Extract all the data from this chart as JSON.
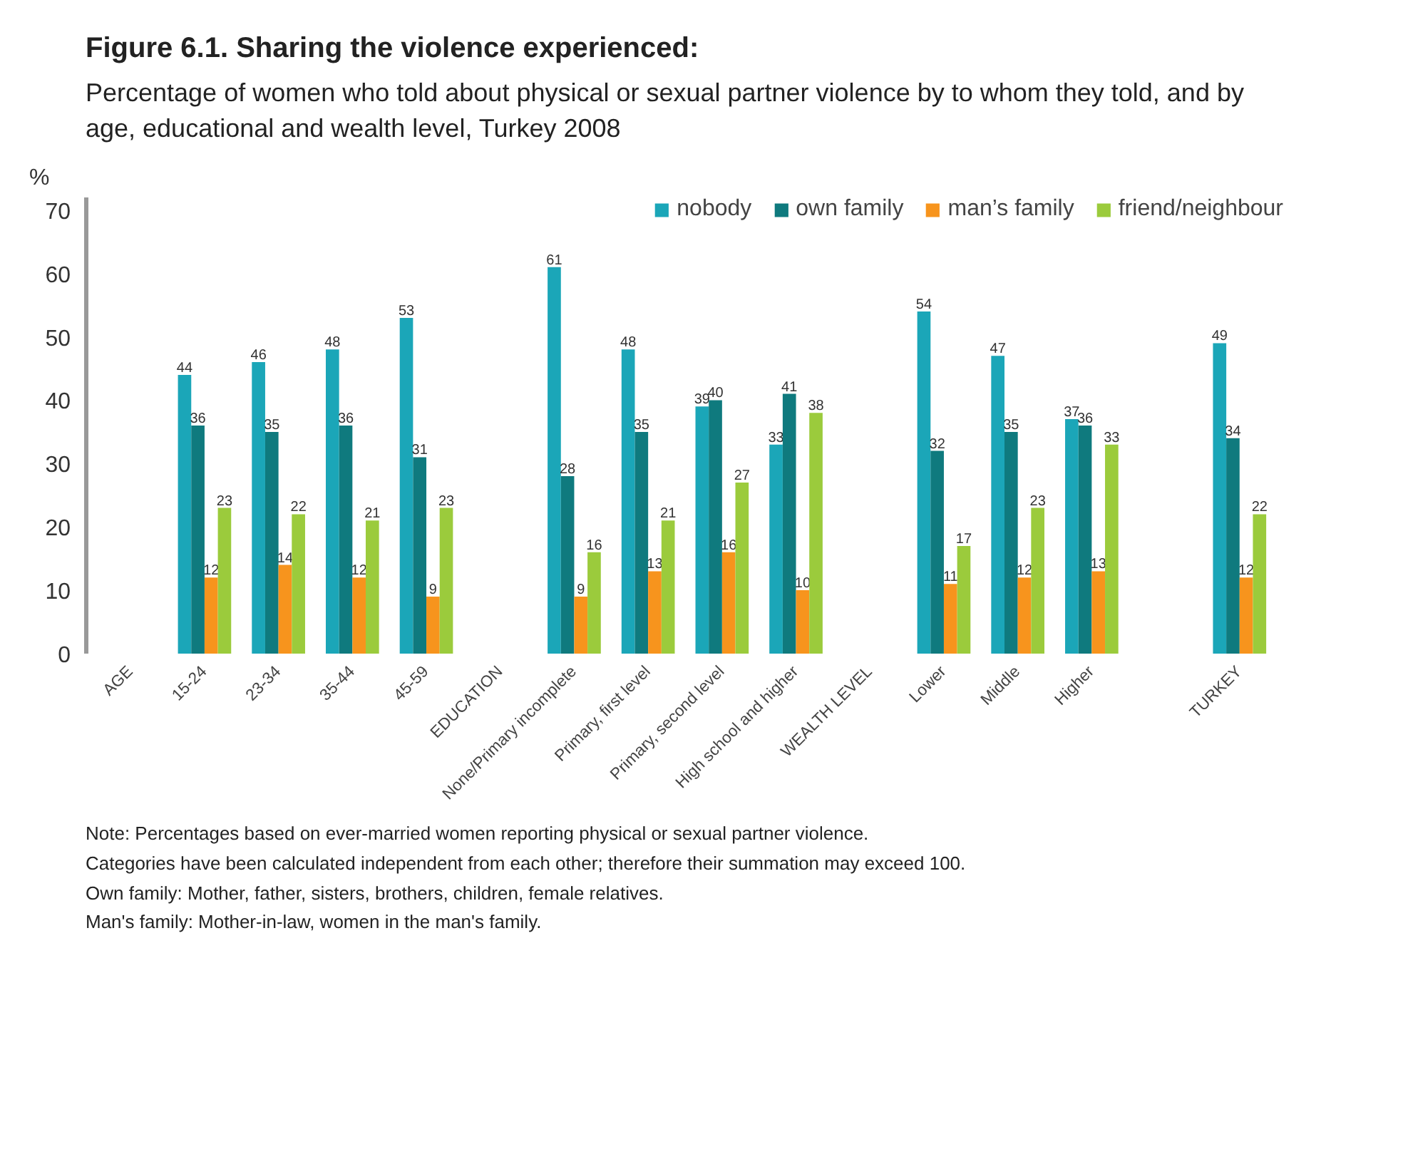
{
  "chart_data": {
    "type": "bar",
    "title": "Figure 6.1. Sharing the violence experienced:",
    "subtitle": "Percentage of women who told about physical or sexual partner violence by to whom they told, and by age, educational and wealth level, Turkey 2008",
    "ylabel": "%",
    "categories": [
      "AGE",
      "15-24",
      "23-34",
      "35-44",
      "45-59",
      "EDUCATION",
      "None/Primary incomplete",
      "Primary, first level",
      "Primary, second level",
      "High school and higher",
      "WEALTH LEVEL",
      "Lower",
      "Middle",
      "Higher",
      null,
      "TURKEY"
    ],
    "series": [
      {
        "name": "nobody",
        "color": "#1ba6b8",
        "values": [
          null,
          44,
          46,
          48,
          53,
          null,
          61,
          48,
          39,
          33,
          null,
          54,
          47,
          37,
          null,
          49
        ]
      },
      {
        "name": "own family",
        "color": "#0f7a7e",
        "values": [
          null,
          36,
          35,
          36,
          31,
          null,
          28,
          35,
          40,
          41,
          null,
          32,
          35,
          36,
          null,
          34
        ]
      },
      {
        "name": "man’s family",
        "color": "#f7941d",
        "values": [
          null,
          12,
          14,
          12,
          9,
          null,
          9,
          13,
          16,
          10,
          null,
          11,
          12,
          13,
          null,
          12
        ]
      },
      {
        "name": "friend/neighbour",
        "color": "#9bcb3c",
        "values": [
          null,
          23,
          22,
          21,
          23,
          null,
          16,
          21,
          27,
          38,
          null,
          17,
          23,
          33,
          null,
          22
        ]
      }
    ],
    "ylim": [
      0,
      72
    ],
    "yticks": [
      0,
      10,
      20,
      30,
      40,
      50,
      60,
      70
    ],
    "grid": false,
    "legend": "top",
    "data_labels": true,
    "annotations": [
      "Note: Percentages based on ever-married women reporting physical or sexual partner violence.",
      "Categories have been calculated independent from each other; therefore their summation may exceed 100.",
      "Own family: Mother, father, sisters, brothers, children, female relatives.",
      "Man's family: Mother-in-law, women in the man's family."
    ]
  }
}
